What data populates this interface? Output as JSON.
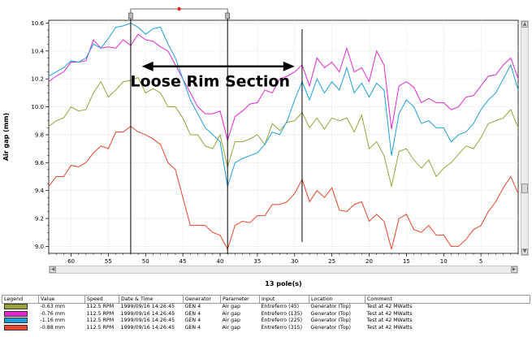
{
  "chart_data": {
    "type": "line",
    "ylabel": "Air gap (mm)",
    "xlabel": "13 pole(s)",
    "ylim": [
      8.95,
      10.62
    ],
    "xlim": [
      63,
      0
    ],
    "y_ticks": [
      9.0,
      9.2,
      9.4,
      9.6,
      9.8,
      10.0,
      10.2,
      10.4,
      10.6
    ],
    "y_tick_labels": [
      "9.0",
      "9.2",
      "9.4",
      "9.6",
      "9.8",
      "10.0",
      "10.2",
      "10.4",
      "10.6"
    ],
    "x_ticks": [
      60,
      55,
      50,
      45,
      40,
      35,
      30,
      25,
      20,
      15,
      10,
      5
    ],
    "x_tick_labels": [
      "60",
      "55",
      "50",
      "45",
      "40",
      "35",
      "30",
      "25",
      "20",
      "15",
      "10",
      "5"
    ],
    "grid": true,
    "x": [
      63,
      62,
      61,
      60,
      59,
      58,
      57,
      56,
      55,
      54,
      53,
      52,
      51,
      50,
      49,
      48,
      47,
      46,
      45,
      44,
      43,
      42,
      41,
      40,
      39,
      38,
      37,
      36,
      35,
      34,
      33,
      32,
      31,
      30,
      29,
      28,
      27,
      26,
      25,
      24,
      23,
      22,
      21,
      20,
      19,
      18,
      17,
      16,
      15,
      14,
      13,
      12,
      11,
      10,
      9,
      8,
      7,
      6,
      5,
      4,
      3,
      2,
      1,
      0
    ],
    "series": [
      {
        "color": "#9aa33a",
        "values": [
          9.86,
          9.9,
          9.92,
          10.0,
          9.97,
          9.98,
          10.1,
          10.18,
          10.07,
          10.12,
          10.18,
          10.19,
          10.21,
          10.1,
          10.13,
          10.1,
          10.0,
          10.0,
          9.92,
          9.8,
          9.8,
          9.72,
          9.7,
          9.8,
          9.57,
          9.75,
          9.75,
          9.77,
          9.8,
          9.73,
          9.88,
          9.83,
          9.89,
          9.9,
          9.96,
          9.85,
          9.92,
          9.84,
          9.92,
          9.9,
          9.92,
          9.82,
          9.94,
          9.7,
          9.75,
          9.65,
          9.43,
          9.68,
          9.7,
          9.62,
          9.56,
          9.62,
          9.5,
          9.56,
          9.6,
          9.66,
          9.72,
          9.7,
          9.78,
          9.88,
          9.9,
          9.92,
          9.98,
          9.85
        ]
      },
      {
        "color": "#e02ad0",
        "values": [
          10.18,
          10.22,
          10.25,
          10.32,
          10.32,
          10.33,
          10.48,
          10.42,
          10.43,
          10.42,
          10.48,
          10.44,
          10.52,
          10.48,
          10.47,
          10.43,
          10.4,
          10.3,
          10.2,
          10.1,
          10.0,
          9.95,
          9.95,
          9.97,
          9.76,
          9.93,
          9.97,
          10.02,
          10.03,
          10.12,
          10.1,
          10.2,
          10.22,
          10.25,
          10.3,
          10.15,
          10.35,
          10.28,
          10.32,
          10.25,
          10.42,
          10.25,
          10.28,
          10.18,
          10.4,
          10.3,
          9.84,
          10.15,
          10.18,
          10.14,
          10.03,
          10.06,
          10.03,
          10.03,
          9.98,
          10.0,
          10.07,
          10.08,
          10.15,
          10.22,
          10.23,
          10.3,
          10.35,
          10.2
        ]
      },
      {
        "color": "#1f9fd8",
        "values": [
          10.22,
          10.25,
          10.28,
          10.33,
          10.32,
          10.35,
          10.45,
          10.42,
          10.49,
          10.57,
          10.58,
          10.6,
          10.57,
          10.52,
          10.56,
          10.57,
          10.45,
          10.35,
          10.2,
          10.05,
          9.95,
          9.85,
          9.8,
          9.75,
          9.43,
          9.6,
          9.63,
          9.65,
          9.67,
          9.73,
          9.82,
          9.8,
          9.9,
          10.05,
          10.18,
          10.05,
          10.2,
          10.1,
          10.18,
          10.12,
          10.28,
          10.1,
          10.17,
          10.07,
          10.17,
          10.12,
          9.65,
          9.95,
          10.05,
          10.0,
          9.88,
          9.9,
          9.85,
          9.85,
          9.75,
          9.8,
          9.82,
          9.88,
          9.98,
          10.05,
          10.1,
          10.2,
          10.3,
          10.12
        ]
      },
      {
        "color": "#e8452a",
        "values": [
          9.43,
          9.5,
          9.5,
          9.58,
          9.57,
          9.6,
          9.67,
          9.72,
          9.7,
          9.82,
          9.82,
          9.86,
          9.82,
          9.8,
          9.77,
          9.73,
          9.6,
          9.55,
          9.35,
          9.15,
          9.15,
          9.15,
          9.1,
          9.08,
          8.98,
          9.15,
          9.18,
          9.17,
          9.22,
          9.22,
          9.3,
          9.3,
          9.32,
          9.38,
          9.48,
          9.32,
          9.4,
          9.35,
          9.42,
          9.26,
          9.25,
          9.3,
          9.32,
          9.18,
          9.23,
          9.18,
          8.98,
          9.2,
          9.23,
          9.12,
          9.1,
          9.15,
          9.08,
          9.08,
          9.0,
          9.0,
          9.05,
          9.12,
          9.15,
          9.25,
          9.32,
          9.42,
          9.5,
          9.38
        ]
      }
    ],
    "cursors": [
      {
        "x": 52
      },
      {
        "x": 39
      },
      {
        "x": 29
      }
    ],
    "annotation": {
      "text": "Loose Rim Section",
      "arrow_from_x": 50.5,
      "arrow_to_x": 30,
      "y": 10.29
    }
  },
  "legend": {
    "headers": [
      "Legend",
      "Value",
      "Speed",
      "Date & Time",
      "Generator",
      "Parameter",
      "Input",
      "Location",
      "Comment"
    ],
    "rows": [
      {
        "color": "#9aa33a",
        "value": "-0.63  mm",
        "speed": "112.5 RPM",
        "datetime": "1999/09/16  14:26:45",
        "generator": "GEN 4",
        "parameter": "Air gap",
        "input": "Entreferro (45)",
        "location": "Generator (Top)",
        "comment": "Test at 42 MWatts"
      },
      {
        "color": "#e02ad0",
        "value": "-0.76  mm",
        "speed": "112.5 RPM",
        "datetime": "1999/09/16  14:26:45",
        "generator": "GEN 4",
        "parameter": "Air gap",
        "input": "Entreferro (135)",
        "location": "Generator (Top)",
        "comment": "Test at 42 MWatts"
      },
      {
        "color": "#1f9fd8",
        "value": "-1.16  mm",
        "speed": "112.5 RPM",
        "datetime": "1999/09/16  14:26:45",
        "generator": "GEN 4",
        "parameter": "Air gap",
        "input": "Entreferro (225)",
        "location": "Generator (Top)",
        "comment": "Test at 42 MWatts"
      },
      {
        "color": "#e8452a",
        "value": "-0.88  mm",
        "speed": "112.5 RPM",
        "datetime": "1999/09/16  14:26:45",
        "generator": "GEN 4",
        "parameter": "Air gap",
        "input": "Entreferro (315)",
        "location": "Generator (Top)",
        "comment": "Test at 42 MWatts"
      }
    ]
  }
}
